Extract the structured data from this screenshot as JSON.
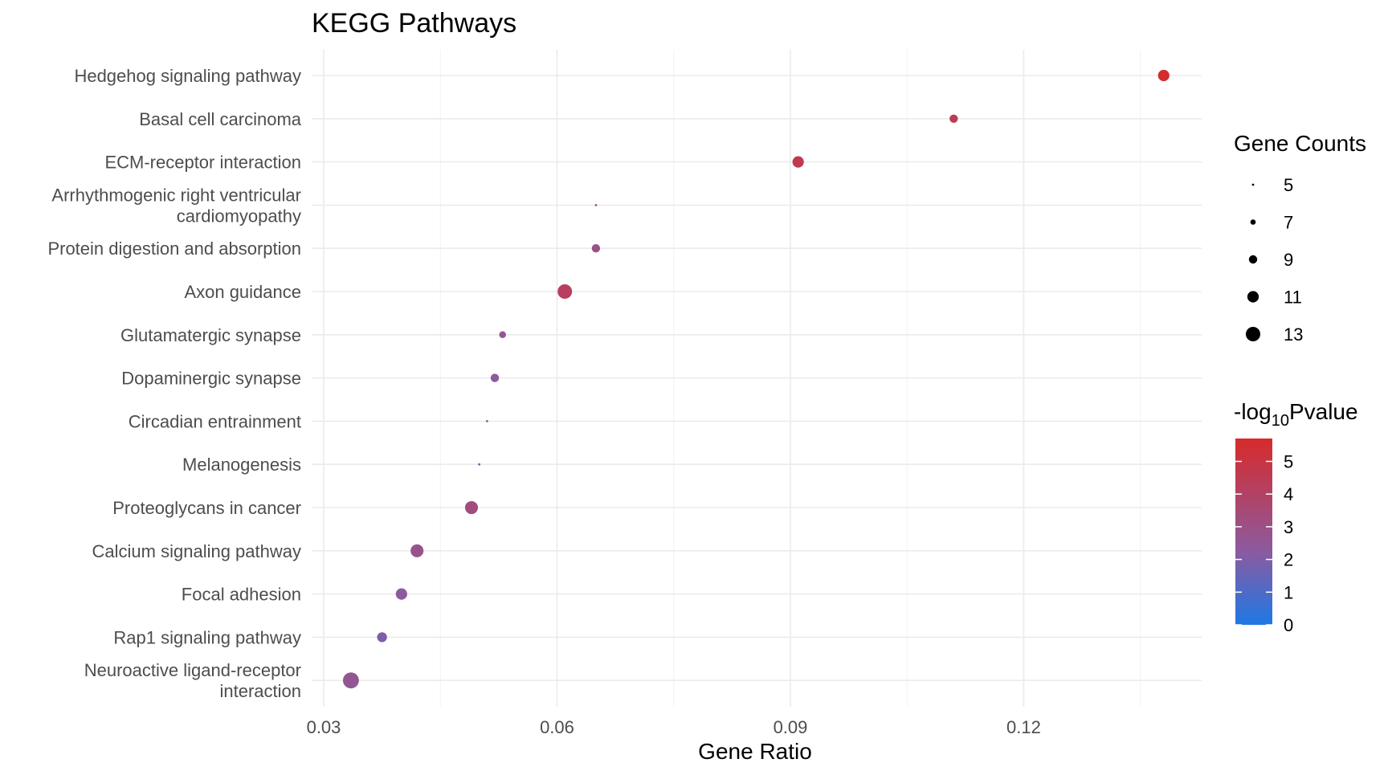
{
  "chart_data": {
    "type": "scatter",
    "title": "KEGG Pathways",
    "xlabel": "Gene Ratio",
    "ylabel": "",
    "xlim": [
      0.03,
      0.14
    ],
    "xticks": [
      0.03,
      0.06,
      0.09,
      0.12
    ],
    "xtick_labels": [
      "0.03",
      "0.06",
      "0.09",
      "0.12"
    ],
    "grid": true,
    "points": [
      {
        "label": [
          "Hedgehog signaling pathway"
        ],
        "x": 0.138,
        "count": 11,
        "neglog10p": 5.6
      },
      {
        "label": [
          "Basal cell carcinoma"
        ],
        "x": 0.111,
        "count": 9,
        "neglog10p": 4.4
      },
      {
        "label": [
          "ECM-receptor interaction"
        ],
        "x": 0.091,
        "count": 11,
        "neglog10p": 4.6
      },
      {
        "label": [
          "Arrhythmogenic right ventricular",
          "cardiomyopathy"
        ],
        "x": 0.065,
        "count": 5,
        "neglog10p": 3.0
      },
      {
        "label": [
          "Protein digestion and absorption"
        ],
        "x": 0.065,
        "count": 9,
        "neglog10p": 3.0
      },
      {
        "label": [
          "Axon guidance"
        ],
        "x": 0.061,
        "count": 13,
        "neglog10p": 4.2
      },
      {
        "label": [
          "Glutamatergic synapse"
        ],
        "x": 0.053,
        "count": 8,
        "neglog10p": 2.5
      },
      {
        "label": [
          "Dopaminergic synapse"
        ],
        "x": 0.052,
        "count": 9,
        "neglog10p": 2.3
      },
      {
        "label": [
          "Circadian entrainment"
        ],
        "x": 0.051,
        "count": 5,
        "neglog10p": 1.9
      },
      {
        "label": [
          "Melanogenesis"
        ],
        "x": 0.05,
        "count": 5,
        "neglog10p": 1.8
      },
      {
        "label": [
          "Proteoglycans in cancer"
        ],
        "x": 0.049,
        "count": 12,
        "neglog10p": 3.3
      },
      {
        "label": [
          "Calcium signaling pathway"
        ],
        "x": 0.042,
        "count": 12,
        "neglog10p": 2.8
      },
      {
        "label": [
          "Focal adhesion"
        ],
        "x": 0.04,
        "count": 11,
        "neglog10p": 2.3
      },
      {
        "label": [
          "Rap1 signaling pathway"
        ],
        "x": 0.0375,
        "count": 10,
        "neglog10p": 2.0
      },
      {
        "label": [
          "Neuroactive ligand-receptor",
          "interaction"
        ],
        "x": 0.0335,
        "count": 14,
        "neglog10p": 2.6
      }
    ],
    "legend": {
      "placement": "right",
      "size": {
        "title": "Gene Counts",
        "values": [
          5,
          7,
          9,
          11,
          13
        ],
        "labels": [
          "5",
          "7",
          "9",
          "11",
          "13"
        ]
      },
      "color": {
        "title_main": "-log",
        "title_sub": "10",
        "title_end": "Pvalue",
        "range": [
          0,
          5.7
        ],
        "ticks": [
          0,
          1,
          2,
          3,
          4,
          5
        ],
        "tick_labels": [
          "0",
          "1",
          "2",
          "3",
          "4",
          "5"
        ],
        "low_color": "#1e78e6",
        "mid_color": "#8c5a9e",
        "high_color": "#d72b2b"
      }
    }
  }
}
